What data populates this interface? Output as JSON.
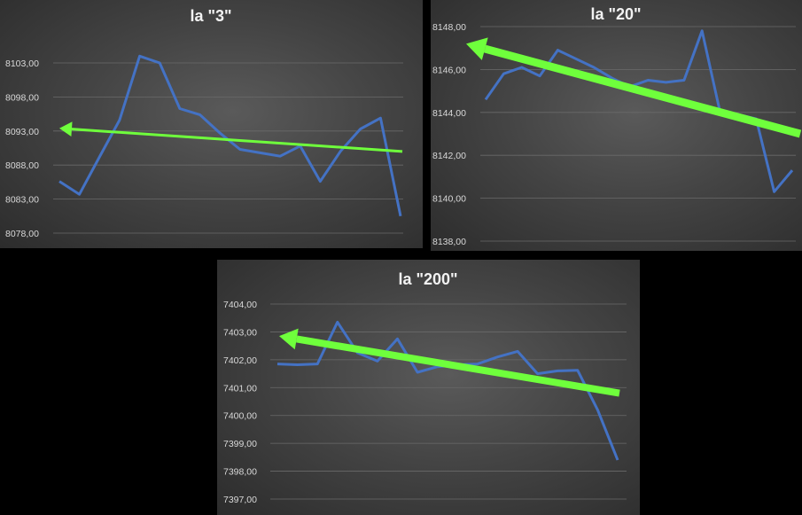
{
  "chart_data": [
    {
      "type": "line",
      "title": "la \"3\"",
      "yticks": [
        "8078,00",
        "8083,00",
        "8088,00",
        "8093,00",
        "8098,00",
        "8103,00"
      ],
      "ylim": [
        8078,
        8106
      ],
      "grid": true,
      "series": [
        {
          "values": [
            8085.6,
            8083.7,
            8089.2,
            8094.6,
            8104.0,
            8103.0,
            8096.3,
            8095.4,
            8092.7,
            8090.3,
            8089.8,
            8089.3,
            8090.8,
            8085.6,
            8090.0,
            8093.3,
            8094.9,
            8080.5
          ]
        }
      ],
      "trend_arrow": {
        "from": 8090.0,
        "to": 8093.4,
        "color": "#6fff3c"
      },
      "line_color": "#4472c4"
    },
    {
      "type": "line",
      "title": "la \"20\"",
      "yticks": [
        "8138,00",
        "8140,00",
        "8142,00",
        "8144,00",
        "8146,00",
        "8148,00"
      ],
      "ylim": [
        8138,
        8148
      ],
      "grid": true,
      "series": [
        {
          "values": [
            8144.6,
            8145.8,
            8146.1,
            8145.7,
            8146.9,
            8146.5,
            8146.1,
            8145.6,
            8145.2,
            8145.5,
            8145.4,
            8145.5,
            8147.8,
            8144.0,
            8143.9,
            8143.7,
            8140.3,
            8141.3
          ]
        }
      ],
      "trend_arrow": {
        "from": 8143.0,
        "to": 8147.2,
        "color": "#6fff3c"
      },
      "line_color": "#4472c4"
    },
    {
      "type": "line",
      "title": "la \"200\"",
      "yticks": [
        "7397,00",
        "7398,00",
        "7399,00",
        "7400,00",
        "7401,00",
        "7402,00",
        "7403,00",
        "7404,00"
      ],
      "ylim": [
        7397,
        7404
      ],
      "grid": true,
      "series": [
        {
          "values": [
            7401.85,
            7401.82,
            7401.85,
            7403.35,
            7402.25,
            7401.95,
            7402.75,
            7401.55,
            7401.75,
            7401.82,
            7401.85,
            7402.1,
            7402.3,
            7401.5,
            7401.6,
            7401.62,
            7400.2,
            7398.4
          ]
        }
      ],
      "trend_arrow": {
        "from": 7400.8,
        "to": 7402.85,
        "color": "#6fff3c"
      },
      "line_color": "#4472c4"
    }
  ]
}
